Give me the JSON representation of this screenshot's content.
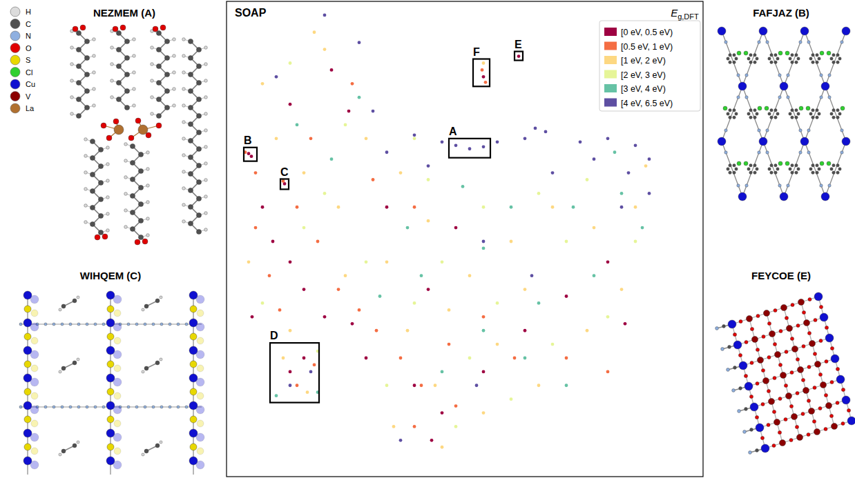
{
  "chart_data": {
    "type": "scatter",
    "title": "SOAP",
    "marker": "circle",
    "tick_labels": false,
    "grid": false,
    "legend": "upper right",
    "legend_title": {
      "text": "E",
      "subscript": "g,DFT"
    },
    "xlim": [
      0,
      690
    ],
    "ylim": [
      0,
      693
    ],
    "series": [
      {
        "name": "[0 eV, 0.5 eV)",
        "color": "#9e0142",
        "x": [
          32,
          36,
          84,
          52,
          67,
          92,
          112,
          142,
          182,
          202,
          272,
          312,
          372,
          432,
          492,
          552,
          372,
          423,
          92,
          152,
          177,
          232,
          292,
          297,
          92,
          112,
          577,
          37,
          332
        ],
        "values": [
          471,
          467,
          427,
          393,
          343,
          313,
          273,
          233,
          223,
          173,
          133,
          93,
          153,
          213,
          263,
          313,
          583,
          613,
          543,
          593,
          533,
          393,
          273,
          53,
          153,
          173,
          223,
          233,
          363
        ]
      },
      {
        "name": "[0.5 eV, 1 eV)",
        "color": "#f46d43",
        "x": [
          27,
          82,
          42,
          62,
          77,
          102,
          132,
          162,
          192,
          217,
          252,
          282,
          322,
          372,
          417,
          272,
          332,
          370,
          375,
          102,
          127,
          122,
          182,
          212,
          492,
          552,
          272,
          42
        ],
        "values": [
          473,
          431,
          363,
          293,
          243,
          393,
          343,
          273,
          243,
          213,
          173,
          133,
          193,
          233,
          173,
          73,
          103,
          593,
          575,
          133,
          163,
          493,
          573,
          433,
          173,
          153,
          393,
          443
        ]
      },
      {
        "name": "[1 eV, 2 eV)",
        "color": "#fdd882",
        "x": [
          52,
          127,
          142,
          72,
          112,
          162,
          32,
          92,
          172,
          232,
          252,
          292,
          352,
          412,
          472,
          532,
          592,
          572,
          522,
          452,
          372,
          312,
          262,
          322,
          392,
          432,
          82,
          117,
          372,
          202,
          607,
          302,
          242
        ],
        "values": [
          573,
          648,
          623,
          493,
          443,
          393,
          313,
          213,
          293,
          313,
          443,
          373,
          293,
          343,
          393,
          363,
          393,
          273,
          213,
          133,
          93,
          43,
          213,
          243,
          193,
          273,
          173,
          123,
          603,
          493,
          453,
          133,
          73
        ]
      },
      {
        "name": "[2 eV, 3 eV)",
        "color": "#e6f598",
        "x": [
          92,
          172,
          142,
          292,
          372,
          452,
          522,
          592,
          552,
          472,
          412,
          352,
          272,
          312,
          392,
          232,
          202,
          52,
          112,
          132,
          272,
          492,
          332
        ],
        "values": [
          603,
          513,
          413,
          433,
          393,
          413,
          433,
          343,
          233,
          193,
          113,
          173,
          253,
          313,
          253,
          133,
          313,
          253,
          363,
          183,
          493,
          343,
          73
        ]
      },
      {
        "name": "[3 eV, 4 eV)",
        "color": "#66c2a5",
        "x": [
          192,
          102,
          262,
          342,
          412,
          502,
          572,
          602,
          532,
          452,
          372,
          312,
          432,
          282,
          222,
          132,
          72,
          152,
          372,
          562,
          492
        ],
        "values": [
          553,
          513,
          363,
          423,
          393,
          393,
          413,
          363,
          293,
          253,
          213,
          153,
          173,
          293,
          263,
          123,
          118,
          463,
          333,
          473,
          133
        ]
      },
      {
        "name": "[4 eV, 6.5 eV)",
        "color": "#5e4fa2",
        "x": [
          142,
          192,
          72,
          272,
          312,
          332,
          352,
          372,
          392,
          432,
          462,
          512,
          552,
          592,
          612,
          582,
          532,
          447,
          572,
          612,
          472,
          292,
          232,
          212,
          92,
          122,
          372,
          442,
          362,
          252
        ],
        "values": [
          673,
          633,
          583,
          498,
          488,
          483,
          478,
          481,
          488,
          493,
          503,
          488,
          493,
          483,
          463,
          443,
          463,
          508,
          393,
          413,
          443,
          453,
          473,
          533,
          133,
          153,
          343,
          293,
          133,
          53
        ]
      }
    ],
    "annotations": [
      {
        "label": "A",
        "x": [
          322,
          382
        ],
        "y": [
          465,
          493
        ]
      },
      {
        "label": "B",
        "x": [
          25,
          44
        ],
        "y": [
          460,
          480
        ]
      },
      {
        "label": "C",
        "x": [
          78,
          90
        ],
        "y": [
          419,
          434
        ]
      },
      {
        "label": "D",
        "x": [
          63,
          134
        ],
        "y": [
          108,
          195
        ]
      },
      {
        "label": "E",
        "x": [
          417,
          429
        ],
        "y": [
          607,
          620
        ]
      },
      {
        "label": "F",
        "x": [
          357,
          381
        ],
        "y": [
          569,
          609
        ]
      }
    ]
  },
  "elements": [
    {
      "label": "H",
      "color": "#dcdcdc"
    },
    {
      "label": "C",
      "color": "#505050"
    },
    {
      "label": "N",
      "color": "#8fb0e0"
    },
    {
      "label": "O",
      "color": "#e00000"
    },
    {
      "label": "S",
      "color": "#e8d800"
    },
    {
      "label": "Cl",
      "color": "#30d030"
    },
    {
      "label": "Cu",
      "color": "#1010d0"
    },
    {
      "label": "V",
      "color": "#8b0000"
    },
    {
      "label": "La",
      "color": "#b07030"
    }
  ],
  "structures": [
    {
      "title": "NEZMEM (A)"
    },
    {
      "title": "WIHQEM (C)"
    },
    {
      "title": "FAFJAZ (B)"
    },
    {
      "title": "FEYCOE (E)"
    }
  ]
}
